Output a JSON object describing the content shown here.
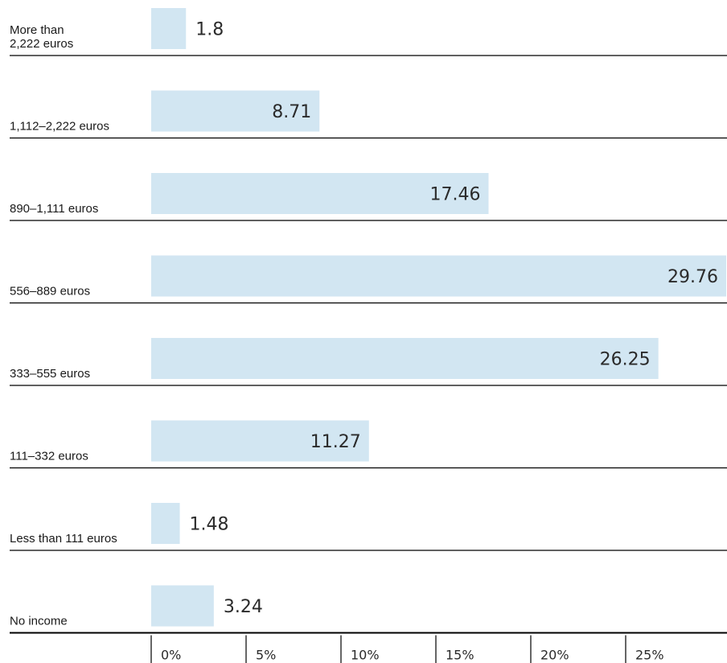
{
  "chart_data": {
    "type": "bar",
    "orientation": "horizontal",
    "categories": [
      [
        "More than",
        "2,222 euros"
      ],
      [
        "1,112–2,222 euros"
      ],
      [
        "890–1,111 euros"
      ],
      [
        "556–889 euros"
      ],
      [
        "333–555 euros"
      ],
      [
        "111–332 euros"
      ],
      [
        "Less than 111  euros"
      ],
      [
        "No income"
      ]
    ],
    "values": [
      1.8,
      8.71,
      17.46,
      29.76,
      26.25,
      11.27,
      1.48,
      3.24
    ],
    "value_labels": [
      "1.8",
      "8.71",
      "17.46",
      "29.76",
      "26.25",
      "11.27",
      "1.48",
      "3.24"
    ],
    "xtick_labels": [
      "0%",
      "5%",
      "10%",
      "15%",
      "20%",
      "25%"
    ],
    "xtick_values": [
      0,
      5,
      10,
      15,
      20,
      25
    ],
    "xlim": [
      0,
      30
    ],
    "bar_color": "#d2e6f2",
    "line_color": "#000000",
    "grid": false,
    "legend": "none"
  }
}
